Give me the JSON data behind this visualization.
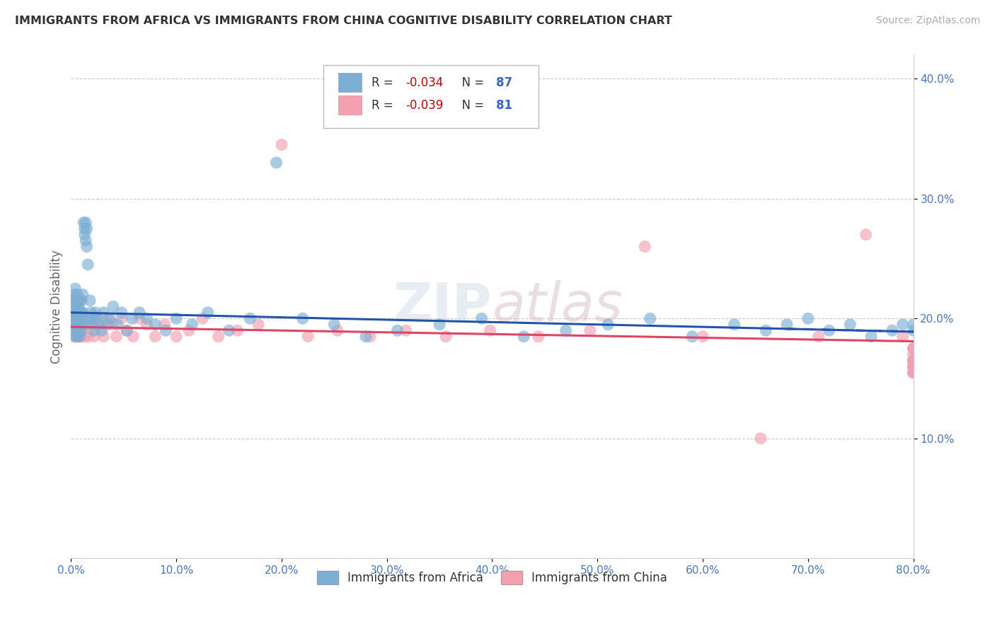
{
  "title": "IMMIGRANTS FROM AFRICA VS IMMIGRANTS FROM CHINA COGNITIVE DISABILITY CORRELATION CHART",
  "source": "Source: ZipAtlas.com",
  "ylabel": "Cognitive Disability",
  "xlim": [
    0.0,
    0.8
  ],
  "ylim": [
    0.0,
    0.42
  ],
  "xticks": [
    0.0,
    0.1,
    0.2,
    0.3,
    0.4,
    0.5,
    0.6,
    0.7,
    0.8
  ],
  "xticklabels": [
    "0.0%",
    "10.0%",
    "20.0%",
    "30.0%",
    "40.0%",
    "50.0%",
    "60.0%",
    "70.0%",
    "80.0%"
  ],
  "yticks": [
    0.1,
    0.2,
    0.3,
    0.4
  ],
  "yticklabels": [
    "10.0%",
    "20.0%",
    "30.0%",
    "40.0%"
  ],
  "africa_color": "#7bafd4",
  "china_color": "#f4a0b0",
  "africa_line_color": "#2255aa",
  "china_line_color": "#dd4466",
  "africa_R": -0.034,
  "africa_N": 87,
  "china_R": -0.039,
  "china_N": 81,
  "watermark": "ZIPAtlas",
  "background_color": "#ffffff",
  "grid_color": "#cccccc",
  "title_color": "#333333",
  "axis_label_color": "#666666",
  "tick_label_color": "#4477cc",
  "legend_R_color": "#cc0000",
  "legend_N_color": "#3366cc",
  "africa_x": [
    0.001,
    0.002,
    0.002,
    0.003,
    0.003,
    0.003,
    0.004,
    0.004,
    0.004,
    0.005,
    0.005,
    0.005,
    0.006,
    0.006,
    0.006,
    0.007,
    0.007,
    0.007,
    0.008,
    0.008,
    0.008,
    0.009,
    0.009,
    0.01,
    0.01,
    0.01,
    0.011,
    0.011,
    0.012,
    0.012,
    0.013,
    0.013,
    0.014,
    0.014,
    0.015,
    0.015,
    0.016,
    0.017,
    0.018,
    0.019,
    0.02,
    0.021,
    0.022,
    0.023,
    0.025,
    0.027,
    0.029,
    0.031,
    0.034,
    0.037,
    0.04,
    0.044,
    0.048,
    0.053,
    0.058,
    0.065,
    0.072,
    0.08,
    0.09,
    0.1,
    0.115,
    0.13,
    0.15,
    0.17,
    0.195,
    0.22,
    0.25,
    0.28,
    0.31,
    0.35,
    0.39,
    0.43,
    0.47,
    0.51,
    0.55,
    0.59,
    0.63,
    0.66,
    0.68,
    0.7,
    0.72,
    0.74,
    0.76,
    0.78,
    0.79,
    0.8,
    0.8
  ],
  "africa_y": [
    0.215,
    0.2,
    0.195,
    0.205,
    0.19,
    0.22,
    0.185,
    0.21,
    0.225,
    0.195,
    0.2,
    0.215,
    0.185,
    0.205,
    0.22,
    0.19,
    0.21,
    0.195,
    0.2,
    0.215,
    0.185,
    0.205,
    0.195,
    0.2,
    0.215,
    0.19,
    0.205,
    0.22,
    0.195,
    0.28,
    0.275,
    0.27,
    0.265,
    0.28,
    0.26,
    0.275,
    0.245,
    0.2,
    0.215,
    0.205,
    0.195,
    0.2,
    0.19,
    0.205,
    0.2,
    0.195,
    0.19,
    0.205,
    0.195,
    0.2,
    0.21,
    0.195,
    0.205,
    0.19,
    0.2,
    0.205,
    0.2,
    0.195,
    0.19,
    0.2,
    0.195,
    0.205,
    0.19,
    0.2,
    0.33,
    0.2,
    0.195,
    0.185,
    0.19,
    0.195,
    0.2,
    0.185,
    0.19,
    0.195,
    0.2,
    0.185,
    0.195,
    0.19,
    0.195,
    0.2,
    0.19,
    0.195,
    0.185,
    0.19,
    0.195,
    0.19,
    0.195
  ],
  "china_x": [
    0.001,
    0.002,
    0.002,
    0.003,
    0.003,
    0.004,
    0.004,
    0.005,
    0.005,
    0.006,
    0.006,
    0.007,
    0.007,
    0.008,
    0.008,
    0.009,
    0.009,
    0.01,
    0.01,
    0.011,
    0.012,
    0.013,
    0.014,
    0.015,
    0.016,
    0.018,
    0.02,
    0.022,
    0.025,
    0.028,
    0.031,
    0.035,
    0.039,
    0.043,
    0.048,
    0.053,
    0.059,
    0.065,
    0.072,
    0.08,
    0.089,
    0.1,
    0.112,
    0.125,
    0.14,
    0.158,
    0.178,
    0.2,
    0.225,
    0.253,
    0.284,
    0.318,
    0.356,
    0.398,
    0.444,
    0.493,
    0.545,
    0.6,
    0.655,
    0.71,
    0.755,
    0.79,
    0.8,
    0.8,
    0.8,
    0.8,
    0.8,
    0.8,
    0.8,
    0.8,
    0.8,
    0.8,
    0.8,
    0.8,
    0.8,
    0.8,
    0.8,
    0.8,
    0.8,
    0.8,
    0.8
  ],
  "china_y": [
    0.2,
    0.195,
    0.205,
    0.185,
    0.215,
    0.19,
    0.21,
    0.185,
    0.2,
    0.21,
    0.195,
    0.185,
    0.205,
    0.2,
    0.215,
    0.185,
    0.2,
    0.195,
    0.185,
    0.205,
    0.2,
    0.185,
    0.2,
    0.195,
    0.185,
    0.2,
    0.195,
    0.185,
    0.2,
    0.195,
    0.185,
    0.2,
    0.195,
    0.185,
    0.2,
    0.19,
    0.185,
    0.2,
    0.195,
    0.185,
    0.195,
    0.185,
    0.19,
    0.2,
    0.185,
    0.19,
    0.195,
    0.345,
    0.185,
    0.19,
    0.185,
    0.19,
    0.185,
    0.19,
    0.185,
    0.19,
    0.26,
    0.185,
    0.1,
    0.185,
    0.27,
    0.185,
    0.175,
    0.165,
    0.16,
    0.155,
    0.16,
    0.165,
    0.17,
    0.175,
    0.165,
    0.16,
    0.155,
    0.165,
    0.16,
    0.155,
    0.165,
    0.16,
    0.155,
    0.165,
    0.175
  ]
}
